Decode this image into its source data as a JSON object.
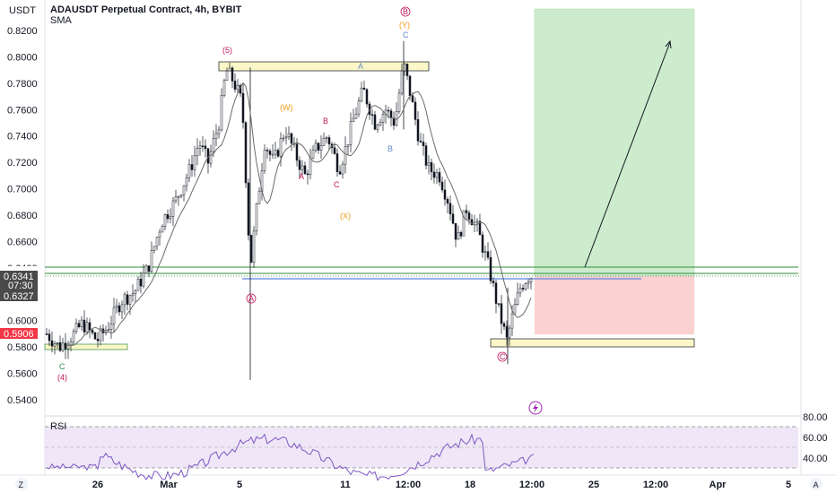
{
  "header": {
    "currency": "USDT",
    "title": "ADAUSDT Perpetual Contract, 4h, BYBIT",
    "indicator": "SMA"
  },
  "price_axis": {
    "ticks": [
      "0.8200",
      "0.8000",
      "0.7800",
      "0.7600",
      "0.7400",
      "0.7200",
      "0.7000",
      "0.6800",
      "0.6600",
      "0.6400",
      "0.6200",
      "0.6000",
      "0.5800",
      "0.5600",
      "0.5400"
    ],
    "badges": {
      "current_price": "0.6341",
      "countdown": "07:30",
      "lower": "0.6327",
      "stop": "0.5906"
    }
  },
  "time_axis": {
    "labels": [
      "26",
      "Mar",
      "5",
      "11",
      "12:00",
      "18",
      "12:00",
      "25",
      "12:00",
      "Apr",
      "5"
    ],
    "z_button": "Z",
    "a_button": "A"
  },
  "rsi": {
    "label": "RSI",
    "ticks": [
      "80.00",
      "60.00",
      "40.00"
    ]
  },
  "waves": {
    "w4": "(4)",
    "w5": "(5)",
    "wA": "A",
    "wWtop": "(W)",
    "wB": "B",
    "wA2": "A",
    "wC": "C",
    "wX": "(X)",
    "wBblue": "B",
    "wYtop": "(Y)",
    "wCtop": "C",
    "wBcircle": "B",
    "wAcircle": "A",
    "wCcircle": "C",
    "wClow": "C",
    "wAmid": "A"
  },
  "colors": {
    "up": "#ffffff",
    "down": "#131722",
    "sma": "#6a6a6a",
    "target_zone": "#cdeccd",
    "stop_zone": "#fbd1d1",
    "zone_yellow": "#fbf7c8",
    "green_line": "#2e8b3a",
    "blue_line": "#5b7fe0",
    "wave_red": "#c2185b",
    "wave_orange": "#f39c12",
    "wave_blue": "#6488c8",
    "wave_green": "#2e8b57"
  },
  "chart_data": {
    "type": "candlestick",
    "symbol": "ADAUSDT",
    "interval": "4h",
    "ylim": [
      0.53,
      0.83
    ],
    "price_ticks": [
      0.82,
      0.8,
      0.78,
      0.76,
      0.74,
      0.72,
      0.7,
      0.68,
      0.66,
      0.64,
      0.62,
      0.6,
      0.58,
      0.56,
      0.54
    ],
    "x_labels": [
      "26",
      "Mar",
      "5",
      "11",
      "12:00",
      "18",
      "12:00",
      "25",
      "12:00",
      "Apr",
      "5"
    ],
    "current_price": 0.6341,
    "levels": {
      "upper_green": 0.64,
      "lower_green": 0.635,
      "blue": 0.6327,
      "stop": 0.5906,
      "target_top": 0.83,
      "target_low": 0.6341,
      "yellow_low_zone": [
        0.58,
        0.586
      ],
      "yellow_top_zone": [
        0.79,
        0.796
      ],
      "left_zone": [
        0.578,
        0.582
      ]
    },
    "rsi_ticks": [
      80,
      60,
      40
    ]
  }
}
